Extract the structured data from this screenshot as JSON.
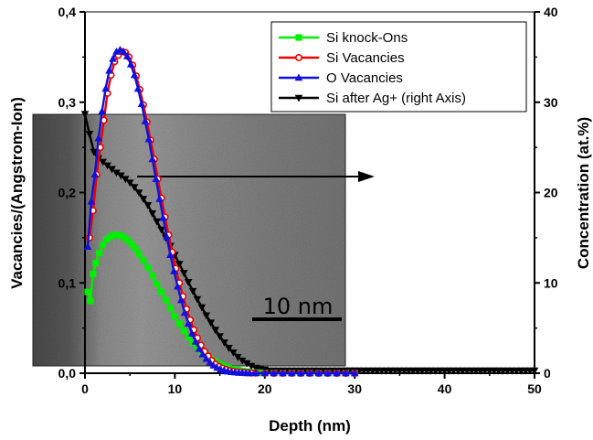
{
  "chart_data": {
    "type": "line",
    "xlabel": "Depth (nm)",
    "ylabel": "Vacancies/(Angstrom-Ion)",
    "y2label": "Concentration (at.%)",
    "xlim": [
      0,
      50
    ],
    "ylim": [
      0,
      0.4
    ],
    "y2lim": [
      0,
      40
    ],
    "x_ticks": [
      0,
      10,
      20,
      30,
      40,
      50
    ],
    "y_ticks": [
      0.0,
      0.1,
      0.2,
      0.3,
      0.4
    ],
    "y_tick_labels": [
      "0,0",
      "0,1",
      "0,2",
      "0,3",
      "0,4"
    ],
    "y2_ticks": [
      0,
      10,
      20,
      30,
      40
    ],
    "grid": false,
    "legend_position": "top-right",
    "series": [
      {
        "name": "Si knock-Ons",
        "color": "#00ee00",
        "marker": "square",
        "axis": "left",
        "x": [
          0.3,
          0.6,
          0.9,
          1.2,
          1.6,
          2.0,
          2.4,
          2.8,
          3.2,
          3.6,
          4.0,
          4.4,
          4.8,
          5.2,
          5.6,
          6.0,
          6.5,
          7.0,
          7.5,
          8.0,
          8.5,
          9.0,
          9.5,
          10.0,
          10.5,
          11.0,
          11.5,
          12.0,
          12.5,
          13.0,
          13.5,
          14.0,
          14.5,
          15.0,
          15.5,
          16.0,
          16.5,
          17.0,
          17.5,
          18.0,
          18.5,
          19.0,
          19.5,
          20.0,
          21,
          22,
          23,
          24,
          25,
          26,
          27,
          28,
          29,
          30
        ],
        "y": [
          0.09,
          0.08,
          0.11,
          0.122,
          0.133,
          0.142,
          0.148,
          0.151,
          0.153,
          0.153,
          0.152,
          0.15,
          0.147,
          0.143,
          0.138,
          0.132,
          0.125,
          0.117,
          0.108,
          0.099,
          0.09,
          0.081,
          0.072,
          0.063,
          0.055,
          0.047,
          0.04,
          0.034,
          0.029,
          0.024,
          0.02,
          0.016,
          0.013,
          0.01,
          0.008,
          0.006,
          0.0045,
          0.0035,
          0.0025,
          0.0018,
          0.0012,
          0.0008,
          0.0005,
          0.0003,
          0.0002,
          0.0001,
          0.0001,
          0,
          0,
          0,
          0,
          0,
          0,
          0
        ]
      },
      {
        "name": "Si Vacancies",
        "color": "#ee0000",
        "marker": "circle-open",
        "axis": "left",
        "x": [
          0.5,
          0.9,
          1.3,
          1.7,
          2.1,
          2.5,
          2.9,
          3.3,
          3.7,
          4.1,
          4.5,
          4.9,
          5.3,
          5.7,
          6.1,
          6.5,
          6.9,
          7.3,
          7.7,
          8.1,
          8.5,
          8.9,
          9.3,
          9.7,
          10.1,
          10.5,
          10.9,
          11.3,
          11.7,
          12.1,
          12.5,
          12.9,
          13.3,
          13.7,
          14.1,
          14.5,
          14.9,
          15.3,
          15.7,
          16.1,
          16.5,
          16.9,
          17.3,
          17.7,
          18.1,
          18.5,
          19,
          20,
          21,
          22,
          23,
          24,
          25,
          26,
          27,
          28,
          29,
          30
        ],
        "y": [
          0.15,
          0.18,
          0.22,
          0.25,
          0.28,
          0.31,
          0.33,
          0.345,
          0.352,
          0.356,
          0.355,
          0.35,
          0.341,
          0.329,
          0.314,
          0.297,
          0.278,
          0.258,
          0.237,
          0.215,
          0.194,
          0.173,
          0.153,
          0.134,
          0.116,
          0.1,
          0.085,
          0.071,
          0.059,
          0.048,
          0.039,
          0.031,
          0.024,
          0.019,
          0.014,
          0.01,
          0.0075,
          0.0055,
          0.004,
          0.0028,
          0.002,
          0.0014,
          0.001,
          0.0007,
          0.0005,
          0.0003,
          0.0002,
          0.0001,
          0,
          0,
          0,
          0,
          0,
          0,
          0,
          0,
          0,
          0
        ]
      },
      {
        "name": "O Vacancies",
        "color": "#1010e0",
        "marker": "triangle",
        "axis": "left",
        "x": [
          0.3,
          0.7,
          1.1,
          1.5,
          1.9,
          2.3,
          2.7,
          3.1,
          3.5,
          3.9,
          4.3,
          4.7,
          5.1,
          5.5,
          5.9,
          6.3,
          6.7,
          7.1,
          7.5,
          7.9,
          8.3,
          8.7,
          9.1,
          9.5,
          9.9,
          10.3,
          10.7,
          11.1,
          11.5,
          11.9,
          12.3,
          12.7,
          13.1,
          13.5,
          13.9,
          14.3,
          14.7,
          15.1,
          15.5,
          15.9,
          16.3,
          16.7,
          17.1,
          17.5,
          17.9,
          18.3,
          19,
          20,
          21,
          22,
          23,
          24,
          25,
          26,
          27,
          28,
          29,
          30
        ],
        "y": [
          0.14,
          0.19,
          0.22,
          0.26,
          0.29,
          0.315,
          0.335,
          0.348,
          0.356,
          0.358,
          0.356,
          0.351,
          0.342,
          0.33,
          0.315,
          0.298,
          0.279,
          0.259,
          0.237,
          0.215,
          0.193,
          0.172,
          0.151,
          0.131,
          0.113,
          0.096,
          0.081,
          0.067,
          0.055,
          0.044,
          0.035,
          0.027,
          0.021,
          0.016,
          0.012,
          0.0085,
          0.006,
          0.0042,
          0.0029,
          0.002,
          0.0013,
          0.0009,
          0.0006,
          0.0004,
          0.0002,
          0.0001,
          0.0001,
          0,
          0,
          0,
          0,
          0,
          0,
          0,
          0,
          0,
          0,
          0
        ]
      },
      {
        "name": "Si after Ag+ (right Axis)",
        "color": "#000000",
        "marker": "triangle-down",
        "axis": "right",
        "x": [
          0,
          0.5,
          1,
          1.5,
          2,
          2.5,
          3,
          3.5,
          4,
          4.5,
          5,
          5.5,
          6,
          6.5,
          7,
          7.5,
          8,
          8.5,
          9,
          9.5,
          10,
          10.5,
          11,
          11.5,
          12,
          12.5,
          13,
          13.5,
          14,
          14.5,
          15,
          15.5,
          16,
          16.5,
          17,
          17.5,
          18,
          18.5,
          19,
          19.5,
          20,
          20.5,
          21,
          21.5,
          22,
          22.5,
          23,
          23.5,
          24,
          24.5,
          25,
          25.5,
          26,
          26.5,
          27,
          27.5,
          28,
          28.5,
          29,
          29.5,
          30,
          30.5,
          31,
          31.5,
          32,
          32.5,
          33,
          33.5,
          34,
          34.5,
          35,
          35.5,
          36,
          36.5,
          37,
          37.5,
          38,
          38.5,
          39,
          39.5,
          40,
          40.5,
          41,
          41.5,
          42,
          42.5,
          43,
          43.5,
          44,
          44.5,
          45,
          45.5,
          46,
          46.5,
          47,
          47.5,
          48,
          48.5,
          49,
          49.5,
          50
        ],
        "y": [
          28.7,
          26.5,
          24.5,
          23.8,
          23.4,
          23.0,
          22.6,
          22.2,
          21.9,
          21.5,
          21.1,
          20.6,
          20.0,
          19.3,
          18.6,
          17.7,
          16.8,
          15.9,
          15.0,
          14.1,
          13.1,
          12.1,
          11.1,
          10.1,
          9.1,
          8.2,
          7.3,
          6.4,
          5.6,
          4.8,
          4.1,
          3.4,
          2.8,
          2.3,
          1.8,
          1.4,
          1.1,
          0.8,
          0.6,
          0.5,
          0.4,
          0.3,
          0.3,
          0.3,
          0.3,
          0.3,
          0.3,
          0.3,
          0.3,
          0.3,
          0.3,
          0.3,
          0.3,
          0.3,
          0.3,
          0.3,
          0.3,
          0.3,
          0.3,
          0.3,
          0.3,
          0.3,
          0.3,
          0.3,
          0.3,
          0.3,
          0.3,
          0.3,
          0.3,
          0.3,
          0.3,
          0.3,
          0.3,
          0.3,
          0.3,
          0.3,
          0.3,
          0.3,
          0.3,
          0.3,
          0.3,
          0.3,
          0.3,
          0.3,
          0.3,
          0.3,
          0.3,
          0.3,
          0.3,
          0.3,
          0.3,
          0.3,
          0.3,
          0.3,
          0.3,
          0.3,
          0.3,
          0.3,
          0.3,
          0.3,
          0.3
        ]
      }
    ],
    "inset": {
      "description_label": "10 nm",
      "kind": "TEM micrograph"
    }
  }
}
